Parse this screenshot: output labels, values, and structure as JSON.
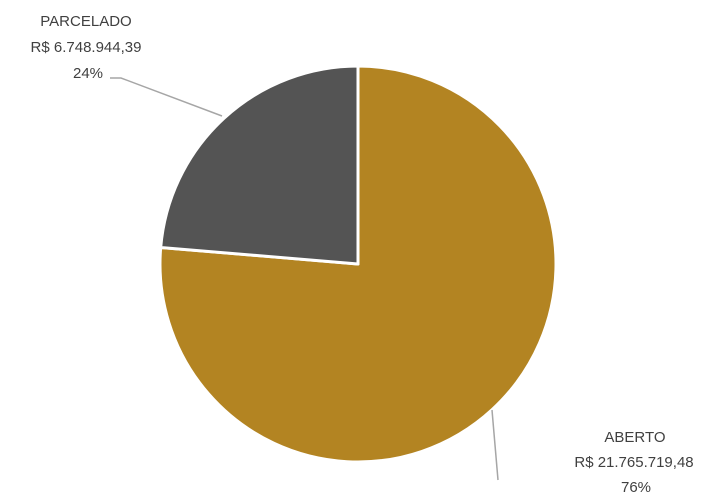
{
  "chart_data": {
    "type": "pie",
    "title": "",
    "slices": [
      {
        "name": "ABERTO",
        "value": 21765719.48,
        "value_label": "R$ 21.765.719,48",
        "percent_label": "76%",
        "color": "#B38422"
      },
      {
        "name": "PARCELADO",
        "value": 6748944.39,
        "value_label": "R$ 6.748.944,39",
        "percent_label": "24%",
        "color": "#545454"
      }
    ],
    "legend": "none"
  }
}
